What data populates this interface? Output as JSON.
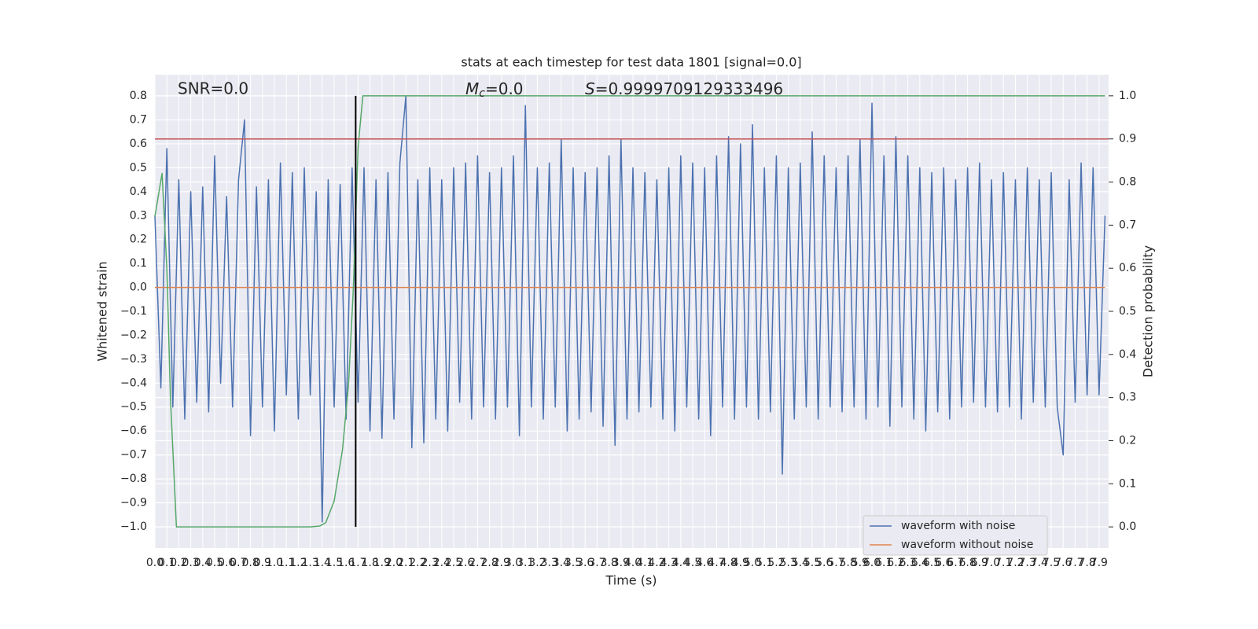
{
  "chart_data": {
    "type": "line",
    "title": "stats at each timestep for test data 1801 [signal=0.0]",
    "xlabel": "Time (s)",
    "ylabel": "Whitened strain",
    "y2label": "Detection probability",
    "annotations": {
      "snr": "SNR=0.0",
      "mc": {
        "symbol": "M",
        "sub": "c",
        "rest": "=0.0"
      },
      "s": {
        "symbol": "S",
        "rest": "=0.9999709129333496"
      }
    },
    "xlim": [
      0,
      7.98
    ],
    "ylim": [
      -1.089,
      0.889
    ],
    "y2lim": [
      -0.049,
      1.049
    ],
    "grid": true,
    "legend": "lower right",
    "xticks": [
      {
        "value": 0,
        "label": "0.0"
      },
      0.1,
      0.2,
      0.3,
      0.4,
      0.5,
      0.6,
      0.7,
      0.8,
      0.9,
      {
        "value": 1,
        "label": "1.0"
      },
      1.1,
      1.2,
      1.3,
      1.4,
      1.5,
      1.6,
      1.7,
      1.8,
      1.9,
      {
        "value": 2,
        "label": "2.0"
      },
      2.1,
      2.2,
      2.3,
      2.4,
      2.5,
      2.6,
      2.7,
      2.8,
      2.9,
      {
        "value": 3,
        "label": "3.0"
      },
      3.1,
      3.2,
      3.3,
      3.4,
      3.5,
      3.6,
      3.7,
      3.8,
      3.9,
      {
        "value": 4,
        "label": "4.0"
      },
      4.1,
      4.2,
      4.3,
      4.4,
      4.5,
      4.6,
      4.7,
      4.8,
      4.9,
      {
        "value": 5,
        "label": "5.0"
      },
      5.1,
      5.2,
      5.3,
      5.4,
      5.5,
      5.6,
      5.7,
      5.8,
      5.9,
      {
        "value": 6,
        "label": "6.0"
      },
      6.1,
      6.2,
      6.3,
      6.4,
      6.5,
      6.6,
      6.7,
      6.8,
      6.9,
      {
        "value": 7,
        "label": "7.0"
      },
      7.1,
      7.2,
      7.3,
      7.4,
      7.5,
      7.6,
      7.7,
      7.8,
      7.9
    ],
    "yticks": [
      {
        "value": -1.0,
        "label": "−1.0"
      },
      {
        "value": -0.9,
        "label": "−0.9"
      },
      {
        "value": -0.8,
        "label": "−0.8"
      },
      {
        "value": -0.7,
        "label": "−0.7"
      },
      {
        "value": -0.6,
        "label": "−0.6"
      },
      {
        "value": -0.5,
        "label": "−0.5"
      },
      {
        "value": -0.4,
        "label": "−0.4"
      },
      {
        "value": -0.3,
        "label": "−0.3"
      },
      {
        "value": -0.2,
        "label": "−0.2"
      },
      {
        "value": -0.1,
        "label": "−0.1"
      },
      {
        "value": 0,
        "label": "0.0"
      },
      0.1,
      0.2,
      0.3,
      0.4,
      0.5,
      0.6,
      0.7,
      0.8
    ],
    "y2ticks": [
      {
        "value": 0,
        "label": "0.0"
      },
      0.1,
      0.2,
      0.3,
      0.4,
      0.5,
      0.6,
      0.7,
      0.8,
      0.9,
      {
        "value": 1,
        "label": "1.0"
      }
    ],
    "threshold": {
      "value": 0.9,
      "axis": "y2",
      "color": "#c44e52"
    },
    "vline": {
      "x": 1.68,
      "color": "#000000"
    },
    "series": [
      {
        "name": "waveform with noise",
        "color": "#4c72b0",
        "x": [
          0,
          0.05,
          0.1,
          0.15,
          0.2,
          0.25,
          0.3,
          0.35,
          0.4,
          0.45,
          0.5,
          0.55,
          0.6,
          0.65,
          0.7,
          0.75,
          0.8,
          0.85,
          0.9,
          0.95,
          1.0,
          1.05,
          1.1,
          1.15,
          1.2,
          1.25,
          1.3,
          1.35,
          1.4,
          1.45,
          1.5,
          1.55,
          1.6,
          1.65,
          1.7,
          1.75,
          1.8,
          1.85,
          1.9,
          1.95,
          2.0,
          2.05,
          2.1,
          2.15,
          2.2,
          2.25,
          2.3,
          2.35,
          2.4,
          2.45,
          2.5,
          2.55,
          2.6,
          2.65,
          2.7,
          2.75,
          2.8,
          2.85,
          2.9,
          2.95,
          3.0,
          3.05,
          3.1,
          3.15,
          3.2,
          3.25,
          3.3,
          3.35,
          3.4,
          3.45,
          3.5,
          3.55,
          3.6,
          3.65,
          3.7,
          3.75,
          3.8,
          3.85,
          3.9,
          3.95,
          4.0,
          4.05,
          4.1,
          4.15,
          4.2,
          4.25,
          4.3,
          4.35,
          4.4,
          4.45,
          4.5,
          4.55,
          4.6,
          4.65,
          4.7,
          4.75,
          4.8,
          4.85,
          4.9,
          4.95,
          5.0,
          5.05,
          5.1,
          5.15,
          5.2,
          5.25,
          5.3,
          5.35,
          5.4,
          5.45,
          5.5,
          5.55,
          5.6,
          5.65,
          5.7,
          5.75,
          5.8,
          5.85,
          5.9,
          5.95,
          6.0,
          6.05,
          6.1,
          6.15,
          6.2,
          6.25,
          6.3,
          6.35,
          6.4,
          6.45,
          6.5,
          6.55,
          6.6,
          6.65,
          6.7,
          6.75,
          6.8,
          6.85,
          6.9,
          6.95,
          7.0,
          7.05,
          7.1,
          7.15,
          7.2,
          7.25,
          7.3,
          7.35,
          7.4,
          7.45,
          7.5,
          7.55,
          7.6,
          7.65,
          7.7,
          7.75,
          7.8,
          7.85,
          7.9,
          7.95
        ],
        "values": [
          0.3,
          -0.42,
          0.58,
          -0.5,
          0.45,
          -0.55,
          0.4,
          -0.48,
          0.42,
          -0.52,
          0.55,
          -0.4,
          0.38,
          -0.5,
          0.45,
          0.7,
          -0.62,
          0.42,
          -0.5,
          0.45,
          -0.6,
          0.52,
          -0.45,
          0.48,
          -0.55,
          0.5,
          -0.45,
          0.4,
          -0.98,
          0.45,
          -0.5,
          0.43,
          -0.55,
          0.5,
          -0.48,
          0.5,
          -0.6,
          0.45,
          -0.63,
          0.48,
          -0.55,
          0.52,
          0.8,
          -0.67,
          0.45,
          -0.65,
          0.5,
          -0.55,
          0.45,
          -0.6,
          0.5,
          -0.48,
          0.52,
          -0.55,
          0.55,
          -0.5,
          0.48,
          -0.55,
          0.5,
          -0.5,
          0.55,
          -0.62,
          0.76,
          -0.5,
          0.5,
          -0.55,
          0.52,
          -0.5,
          0.62,
          -0.6,
          0.5,
          -0.55,
          0.48,
          -0.52,
          0.5,
          -0.58,
          0.55,
          -0.66,
          0.62,
          -0.55,
          0.5,
          -0.52,
          0.48,
          -0.5,
          0.45,
          -0.55,
          0.5,
          -0.6,
          0.55,
          -0.5,
          0.52,
          -0.55,
          0.5,
          -0.62,
          0.55,
          -0.5,
          0.63,
          -0.55,
          0.6,
          -0.5,
          0.68,
          -0.55,
          0.5,
          -0.52,
          0.55,
          -0.78,
          0.5,
          -0.55,
          0.52,
          -0.5,
          0.65,
          -0.55,
          0.55,
          -0.5,
          0.5,
          -0.52,
          0.55,
          -0.5,
          0.62,
          -0.55,
          0.77,
          -0.5,
          0.55,
          -0.58,
          0.63,
          -0.5,
          0.55,
          -0.55,
          0.5,
          -0.6,
          0.48,
          -0.52,
          0.5,
          -0.55,
          0.45,
          -0.5,
          0.5,
          -0.48,
          0.52,
          -0.5,
          0.45,
          -0.52,
          0.48,
          -0.5,
          0.45,
          -0.55,
          0.5,
          -0.48,
          0.45,
          -0.5,
          0.48,
          -0.5,
          -0.7,
          0.45,
          -0.48,
          0.52,
          -0.45,
          0.5,
          -0.45,
          0.3
        ]
      },
      {
        "name": "waveform without noise",
        "color": "#dd8452",
        "x": [
          0,
          7.95
        ],
        "values": [
          0,
          0
        ]
      },
      {
        "color": "#55a868",
        "axis": "y2",
        "x": [
          0,
          0.06,
          0.1,
          0.13,
          0.18,
          1.3,
          1.38,
          1.43,
          1.5,
          1.57,
          1.62,
          1.66,
          1.7,
          1.74,
          7.95
        ],
        "values": [
          0.72,
          0.82,
          0.6,
          0.3,
          0,
          0,
          0.002,
          0.01,
          0.06,
          0.18,
          0.33,
          0.55,
          0.88,
          1.0,
          1.0
        ]
      }
    ]
  }
}
